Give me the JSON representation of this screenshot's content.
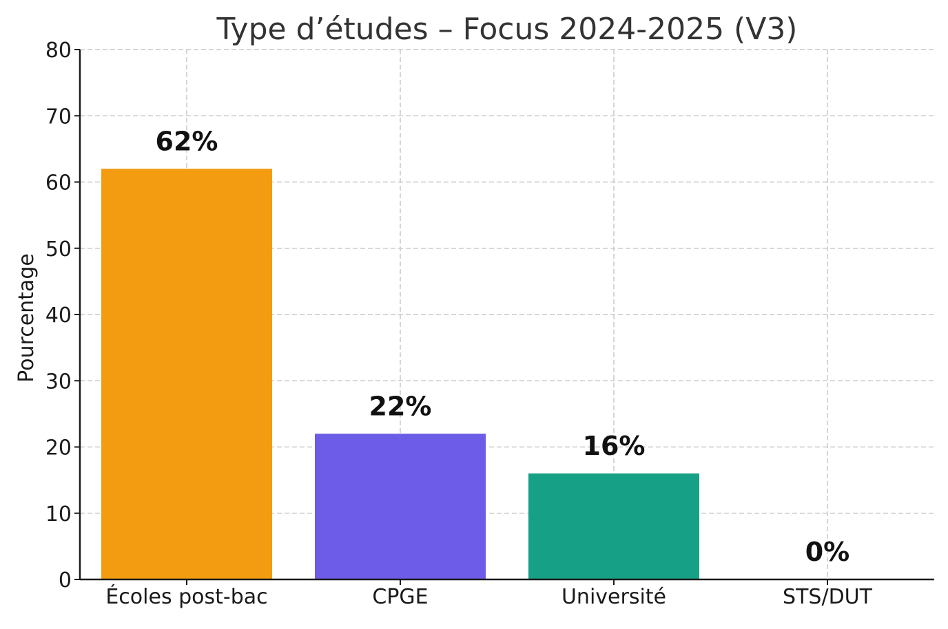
{
  "chart_data": {
    "type": "bar",
    "title": "Type d’études – Focus 2024-2025 (V3)",
    "xlabel": "",
    "ylabel": "Pourcentage",
    "categories": [
      "Écoles post-bac",
      "CPGE",
      "Université",
      "STS/DUT"
    ],
    "values": [
      62,
      22,
      16,
      0
    ],
    "data_labels": [
      "62%",
      "22%",
      "16%",
      "0%"
    ],
    "colors": [
      "#F39C12",
      "#6C5CE7",
      "#16A085",
      "#9E9E9E"
    ],
    "ylim": [
      0,
      80
    ],
    "yticks": [
      0,
      10,
      20,
      30,
      40,
      50,
      60,
      70,
      80
    ],
    "grid": true,
    "legend": "none"
  }
}
